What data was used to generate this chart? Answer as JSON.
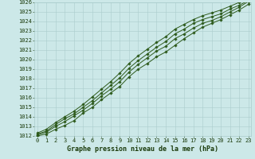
{
  "xlabel": "Graphe pression niveau de la mer (hPa)",
  "x": [
    0,
    1,
    2,
    3,
    4,
    5,
    6,
    7,
    8,
    9,
    10,
    11,
    12,
    13,
    14,
    15,
    16,
    17,
    18,
    19,
    20,
    21,
    22,
    23
  ],
  "series": [
    [
      1012.0,
      1012.2,
      1012.7,
      1013.1,
      1013.6,
      1014.4,
      1015.0,
      1015.8,
      1016.5,
      1017.2,
      1018.2,
      1019.0,
      1019.6,
      1020.3,
      1020.8,
      1021.5,
      1022.2,
      1022.8,
      1023.4,
      1023.8,
      1024.2,
      1024.7,
      1025.2,
      1025.8
    ],
    [
      1012.1,
      1012.4,
      1013.0,
      1013.5,
      1014.1,
      1014.7,
      1015.4,
      1016.2,
      1016.9,
      1017.7,
      1018.7,
      1019.5,
      1020.2,
      1020.9,
      1021.4,
      1022.2,
      1022.7,
      1023.3,
      1023.8,
      1024.1,
      1024.5,
      1025.0,
      1025.5,
      1026.1
    ],
    [
      1012.2,
      1012.5,
      1013.2,
      1013.8,
      1014.3,
      1015.0,
      1015.7,
      1016.5,
      1017.3,
      1018.1,
      1019.1,
      1019.9,
      1020.6,
      1021.3,
      1021.9,
      1022.7,
      1023.2,
      1023.8,
      1024.2,
      1024.5,
      1024.8,
      1025.3,
      1025.7,
      1026.2
    ],
    [
      1012.3,
      1012.7,
      1013.4,
      1014.0,
      1014.6,
      1015.3,
      1016.1,
      1016.9,
      1017.7,
      1018.6,
      1019.6,
      1020.4,
      1021.1,
      1021.8,
      1022.4,
      1023.2,
      1023.7,
      1024.2,
      1024.6,
      1024.9,
      1025.2,
      1025.6,
      1026.0,
      1026.5
    ]
  ],
  "line_color": "#2d5a1b",
  "marker_color": "#2d5a1b",
  "bg_color": "#cce8e8",
  "grid_color": "#aacccc",
  "text_color": "#1a3a0a",
  "ylim": [
    1012,
    1026
  ],
  "yticks": [
    1012,
    1013,
    1014,
    1015,
    1016,
    1017,
    1018,
    1019,
    1020,
    1021,
    1022,
    1023,
    1024,
    1025,
    1026
  ],
  "xticks": [
    0,
    1,
    2,
    3,
    4,
    5,
    6,
    7,
    8,
    9,
    10,
    11,
    12,
    13,
    14,
    15,
    16,
    17,
    18,
    19,
    20,
    21,
    22,
    23
  ],
  "tick_fontsize": 5.0,
  "label_fontsize": 6.0
}
